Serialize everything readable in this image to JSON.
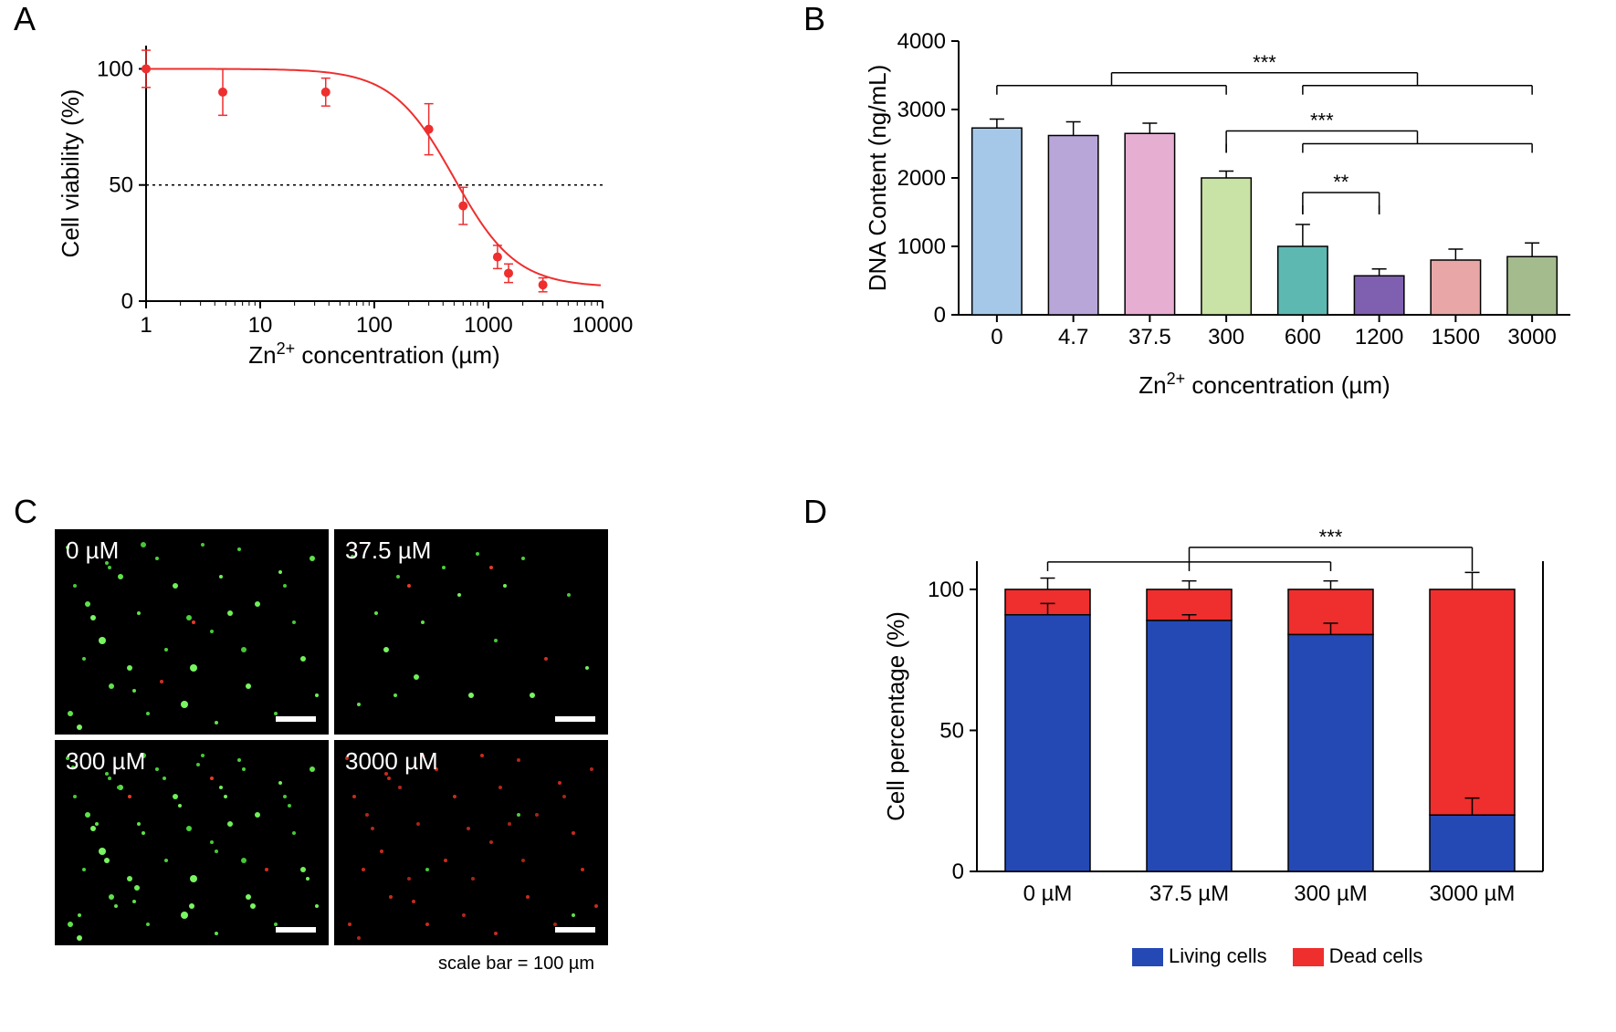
{
  "panelLabels": {
    "A": "A",
    "B": "B",
    "C": "C",
    "D": "D"
  },
  "panelA": {
    "type": "dose-response-line-scatter",
    "xlabel": "Zn²⁺ concentration (µm)",
    "ylabel": "Cell viability (%)",
    "xscale": "log",
    "xlim": [
      1,
      10000
    ],
    "xticks": [
      1,
      10,
      100,
      1000,
      10000
    ],
    "xticklabels": [
      "1",
      "10",
      "100",
      "1000",
      "10000"
    ],
    "ylim": [
      0,
      110
    ],
    "yticks": [
      0,
      50,
      100
    ],
    "yticklabels": [
      "0",
      "50",
      "100"
    ],
    "hline_at": 50,
    "hline_dash": "3,4",
    "hline_color": "#000000",
    "line_color": "#ef2e2e",
    "marker_color": "#ef2e2e",
    "marker_size": 5,
    "line_width": 2,
    "points": [
      {
        "x": 1,
        "y": 100,
        "err": 8
      },
      {
        "x": 4.7,
        "y": 90,
        "err": 10
      },
      {
        "x": 37.5,
        "y": 90,
        "err": 6
      },
      {
        "x": 300,
        "y": 74,
        "err": 11
      },
      {
        "x": 600,
        "y": 41,
        "err": 8
      },
      {
        "x": 1200,
        "y": 19,
        "err": 5
      },
      {
        "x": 1500,
        "y": 12,
        "err": 4
      },
      {
        "x": 3000,
        "y": 7,
        "err": 3
      }
    ],
    "ic50_approx_um": 500,
    "label_fontsize": 26,
    "tick_fontsize": 24,
    "axis_color": "#000000",
    "axis_width": 2,
    "background_color": "#ffffff"
  },
  "panelB": {
    "type": "bar",
    "xlabel": "Zn²⁺ concentration (µm)",
    "ylabel": "DNA Content (ng/mL)",
    "ylim": [
      0,
      4000
    ],
    "yticks": [
      0,
      1000,
      2000,
      3000,
      4000
    ],
    "yticklabels": [
      "0",
      "1000",
      "2000",
      "3000",
      "4000"
    ],
    "categories": [
      "0",
      "4.7",
      "37.5",
      "300",
      "600",
      "1200",
      "1500",
      "3000"
    ],
    "values": [
      2730,
      2620,
      2650,
      2000,
      1000,
      570,
      800,
      850
    ],
    "errors": [
      130,
      200,
      150,
      100,
      320,
      100,
      160,
      200
    ],
    "bar_colors": [
      "#a6c8e8",
      "#b8a6d9",
      "#e6aed1",
      "#c9e2a5",
      "#5eb8b2",
      "#7e5fb0",
      "#e8a7a6",
      "#a4bb8e"
    ],
    "bar_border": "#000000",
    "bar_width": 0.65,
    "label_fontsize": 26,
    "tick_fontsize": 24,
    "axis_color": "#000000",
    "axis_width": 2,
    "sig": [
      {
        "groups": [
          0,
          1,
          2,
          3
        ],
        "vs": [
          4,
          5,
          6,
          7
        ],
        "y": 3350,
        "label": "***"
      },
      {
        "groups": [
          3
        ],
        "vs": [
          4,
          5,
          6,
          7
        ],
        "y": 2500,
        "label": "***"
      },
      {
        "groups": [
          4
        ],
        "vs": [
          5
        ],
        "y": 1600,
        "label": "**"
      }
    ],
    "background_color": "#ffffff"
  },
  "panelC": {
    "type": "microscopy-grid",
    "scalebar_caption": "scale bar = 100 µm",
    "images": [
      {
        "tag": "0 µM",
        "field": "green-heavy",
        "red": "few"
      },
      {
        "tag": "37.5 µM",
        "field": "green-heavy",
        "red": "few"
      },
      {
        "tag": "300 µM",
        "field": "green-heavy",
        "red": "sparse"
      },
      {
        "tag": "3000 µM",
        "field": "red-heavy",
        "green": "sparse"
      }
    ],
    "bg_color": "#000000",
    "green": "#4bd13a",
    "red": "#e53a2a",
    "scalebar_color": "#ffffff",
    "tag_fontsize": 26
  },
  "panelD": {
    "type": "stacked-bar",
    "xlabel_categories": [
      "0 µM",
      "37.5 µM",
      "300 µM",
      "3000 µM"
    ],
    "ylabel": "Cell percentage (%)",
    "ylim": [
      0,
      110
    ],
    "yticks": [
      0,
      50,
      100
    ],
    "yticklabels": [
      "0",
      "50",
      "100"
    ],
    "series": [
      {
        "name": "Living cells",
        "color": "#2449b5",
        "values": [
          91,
          89,
          84,
          20
        ],
        "errors": [
          4,
          2,
          4,
          6
        ]
      },
      {
        "name": "Dead cells",
        "color": "#ef2e2e",
        "values": [
          9,
          11,
          16,
          80
        ],
        "errors": [
          4,
          3,
          3,
          6
        ]
      }
    ],
    "total": 100,
    "sig": {
      "between": [
        [
          0,
          3
        ],
        [
          1,
          3
        ],
        [
          2,
          3
        ]
      ],
      "y": 113,
      "label": "***"
    },
    "bar_width": 0.6,
    "label_fontsize": 26,
    "tick_fontsize": 24,
    "legend_fontsize": 22,
    "axis_color": "#000000",
    "axis_width": 2,
    "background_color": "#ffffff",
    "bar_border": "#000000"
  }
}
